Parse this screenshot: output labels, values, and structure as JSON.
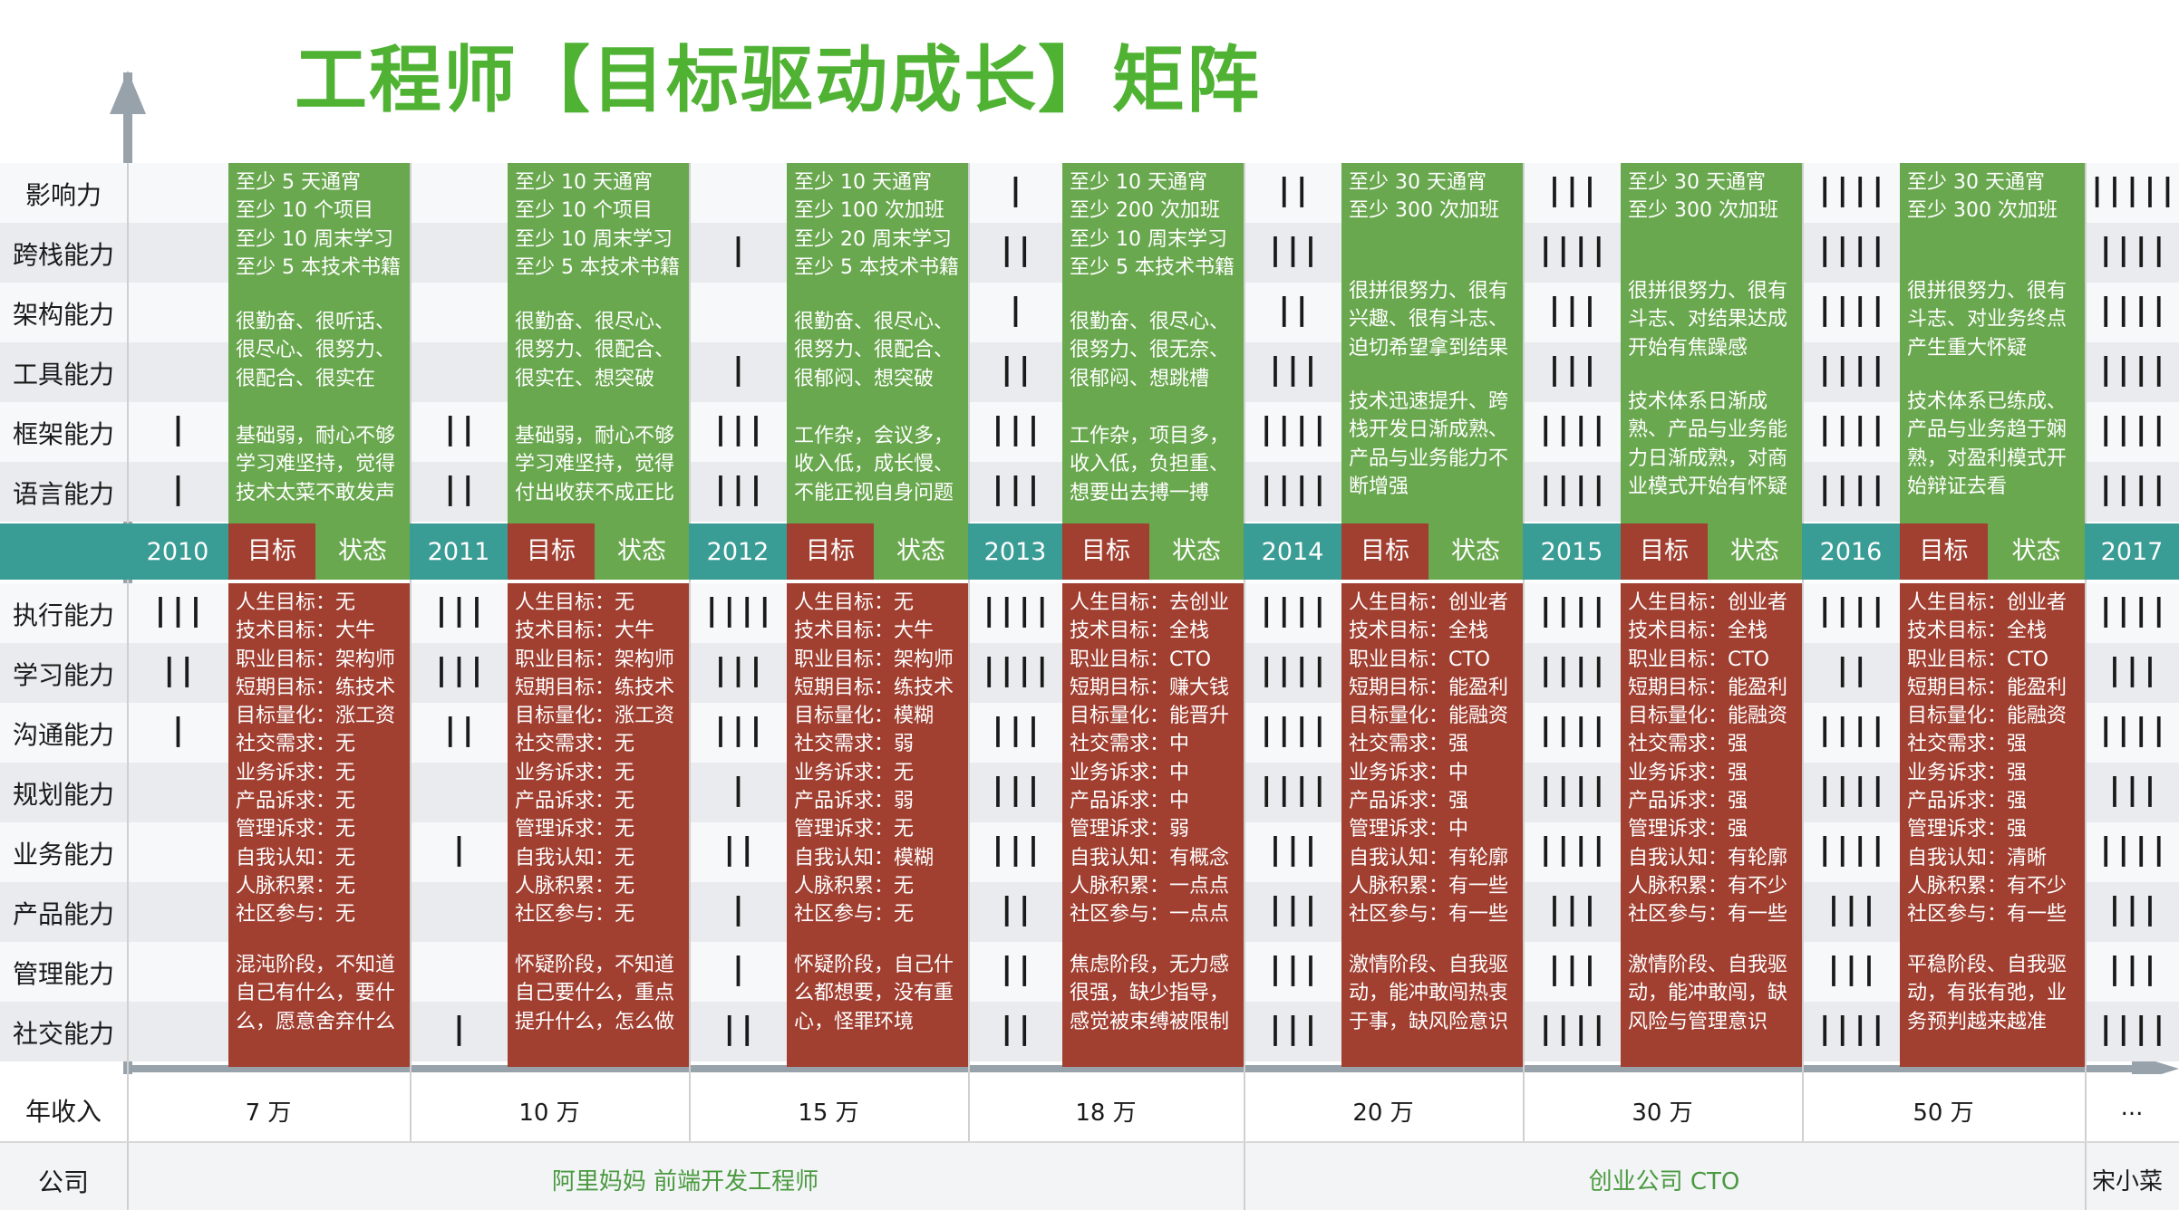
{
  "title": "工程师【目标驱动成长】矩阵",
  "upper_labels": [
    "影响力",
    "跨栈能力",
    "架构能力",
    "工具能力",
    "框架能力",
    "语言能力"
  ],
  "lower_labels": [
    "执行能力",
    "学习能力",
    "沟通能力",
    "规划能力",
    "业务能力",
    "产品能力",
    "管理能力",
    "社交能力"
  ],
  "years": [
    "2010",
    "2011",
    "2012",
    "2013",
    "2014",
    "2015",
    "2016",
    "2017"
  ],
  "goal_label": "目标",
  "status_label": "状态",
  "income_label": "年收入",
  "company_label": "公司",
  "income_values": [
    "7 万",
    "10 万",
    "15 万",
    "18 万",
    "20 万",
    "30 万",
    "50 万",
    "..."
  ],
  "companies": [
    {
      "name": "阿里妈妈 前端开发工程师",
      "start": 0,
      "end": 3
    },
    {
      "name": "创业公司 CTO",
      "start": 4,
      "end": 6
    },
    {
      "name": "宋小菜",
      "start": 7,
      "end": 7
    }
  ],
  "upper_tallies": [
    [
      "",
      "",
      "",
      "",
      "1",
      "1"
    ],
    [
      "",
      "",
      "",
      "",
      "2",
      "2"
    ],
    [
      "",
      "1",
      "",
      "1",
      "3",
      "3"
    ],
    [
      "1",
      "2",
      "1",
      "2",
      "3",
      "3"
    ],
    [
      "2",
      "3",
      "2",
      "3",
      "4",
      "4"
    ],
    [
      "3",
      "4",
      "3",
      "3",
      "4",
      "4"
    ],
    [
      "4",
      "4",
      "4",
      "4",
      "4",
      "4"
    ],
    [
      "5",
      "4",
      "4",
      "4",
      "4",
      "4"
    ]
  ],
  "lower_tallies": [
    [
      "3",
      "2",
      "1",
      "",
      "",
      "",
      "",
      ""
    ],
    [
      "3",
      "3",
      "2",
      "",
      "1",
      "",
      "",
      "1"
    ],
    [
      "4",
      "3",
      "3",
      "1",
      "2",
      "1",
      "1",
      "2"
    ],
    [
      "4",
      "4",
      "3",
      "3",
      "3",
      "2",
      "2",
      "2"
    ],
    [
      "4",
      "4",
      "4",
      "4",
      "3",
      "3",
      "3",
      "3"
    ],
    [
      "4",
      "4",
      "4",
      "4",
      "4",
      "3",
      "3",
      "4"
    ],
    [
      "4",
      "2",
      "4",
      "4",
      "4",
      "3",
      "3",
      "4"
    ],
    [
      "4",
      "3",
      "4",
      "3",
      "4",
      "3",
      "3",
      "4"
    ]
  ],
  "green_blocks": [
    {
      "top": "至少 5 天通宵\n至少 10 个项目\n至少 10 周末学习\n至少 5 本技术书籍",
      "mid": "很勤奋、很听话、\n很尽心、很努力、\n很配合、很实在",
      "bottom": "基础弱，耐心不够\n学习难坚持，觉得\n技术太菜不敢发声"
    },
    {
      "top": "至少 10 天通宵\n至少 10 个项目\n至少 10 周末学习\n至少 5 本技术书籍",
      "mid": "很勤奋、很尽心、\n很努力、很配合、\n很实在、想突破",
      "bottom": "基础弱，耐心不够\n学习难坚持，觉得\n付出收获不成正比"
    },
    {
      "top": "至少 10 天通宵\n至少 100 次加班\n至少 20 周末学习\n至少 5 本技术书籍",
      "mid": "很勤奋、很尽心、\n很努力、很配合、\n很郁闷、想突破",
      "bottom": "工作杂，会议多，\n收入低，成长慢、\n不能正视自身问题"
    },
    {
      "top": "至少 10 天通宵\n至少 200 次加班\n至少 10 周末学习\n至少 5 本技术书籍",
      "mid": "很勤奋、很尽心、\n很努力、很无奈、\n很郁闷、想跳槽",
      "bottom": "工作杂，项目多，\n收入低，负担重、\n想要出去搏一搏"
    },
    {
      "top": "至少 30 天通宵\n至少 300 次加班",
      "mid": "很拼很努力、很有\n兴趣、很有斗志、\n迫切希望拿到结果",
      "bottom": "技术迅速提升、跨\n栈开发日渐成熟、\n产品与业务能力不\n断增强"
    },
    {
      "top": "至少 30 天通宵\n至少 300 次加班",
      "mid": "很拼很努力、很有\n斗志、对结果达成\n开始有焦躁感",
      "bottom": "技术体系日渐成\n熟、产品与业务能\n力日渐成熟，对商\n业模式开始有怀疑"
    },
    {
      "top": "至少 30 天通宵\n至少 300 次加班",
      "mid": "很拼很努力、很有\n斗志、对业务终点\n产生重大怀疑",
      "bottom": "技术体系已练成、\n产品与业务趋于娴\n熟，对盈利模式开\n始辩证去看"
    }
  ],
  "red_blocks": [
    {
      "goals": "人生目标：无\n技术目标：大牛\n职业目标：架构师\n短期目标：练技术\n目标量化：涨工资\n社交需求：无\n业务诉求：无\n产品诉求：无\n管理诉求：无\n自我认知：无\n人脉积累：无\n社区参与：无",
      "phase": "混沌阶段，不知道\n自己有什么，要什\n么，愿意舍弃什么"
    },
    {
      "goals": "人生目标：无\n技术目标：大牛\n职业目标：架构师\n短期目标：练技术\n目标量化：涨工资\n社交需求：无\n业务诉求：无\n产品诉求：无\n管理诉求：无\n自我认知：无\n人脉积累：无\n社区参与：无",
      "phase": "怀疑阶段，不知道\n自己要什么，重点\n提升什么，怎么做"
    },
    {
      "goals": "人生目标：无\n技术目标：大牛\n职业目标：架构师\n短期目标：练技术\n目标量化：模糊\n社交需求：弱\n业务诉求：无\n产品诉求：弱\n管理诉求：无\n自我认知：模糊\n人脉积累：无\n社区参与：无",
      "phase": "怀疑阶段，自己什\n么都想要，没有重\n心，怪罪环境"
    },
    {
      "goals": "人生目标：去创业\n技术目标：全栈\n职业目标：CTO\n短期目标：赚大钱\n目标量化：能晋升\n社交需求：中\n业务诉求：中\n产品诉求：中\n管理诉求：弱\n自我认知：有概念\n人脉积累：一点点\n社区参与：一点点",
      "phase": "焦虑阶段，无力感\n很强，缺少指导，\n感觉被束缚被限制"
    },
    {
      "goals": "人生目标：创业者\n技术目标：全栈\n职业目标：CTO\n短期目标：能盈利\n目标量化：能融资\n社交需求：强\n业务诉求：中\n产品诉求：强\n管理诉求：中\n自我认知：有轮廓\n人脉积累：有一些\n社区参与：有一些",
      "phase": "激情阶段、自我驱\n动，能冲敢闯热衷\n于事，缺风险意识"
    },
    {
      "goals": "人生目标：创业者\n技术目标：全栈\n职业目标：CTO\n短期目标：能盈利\n目标量化：能融资\n社交需求：强\n业务诉求：强\n产品诉求：强\n管理诉求：强\n自我认知：有轮廓\n人脉积累：有不少\n社区参与：有一些",
      "phase": "激情阶段、自我驱\n动，能冲敢闯，缺\n风险与管理意识"
    },
    {
      "goals": "人生目标：创业者\n技术目标：全栈\n职业目标：CTO\n短期目标：能盈利\n目标量化：能融资\n社交需求：强\n业务诉求：强\n产品诉求：强\n管理诉求：强\n自我认知：清晰\n人脉积累：有不少\n社区参与：有一些",
      "phase": "平稳阶段、自我驱\n动，有张有弛，业\n务预判越来越准"
    }
  ]
}
